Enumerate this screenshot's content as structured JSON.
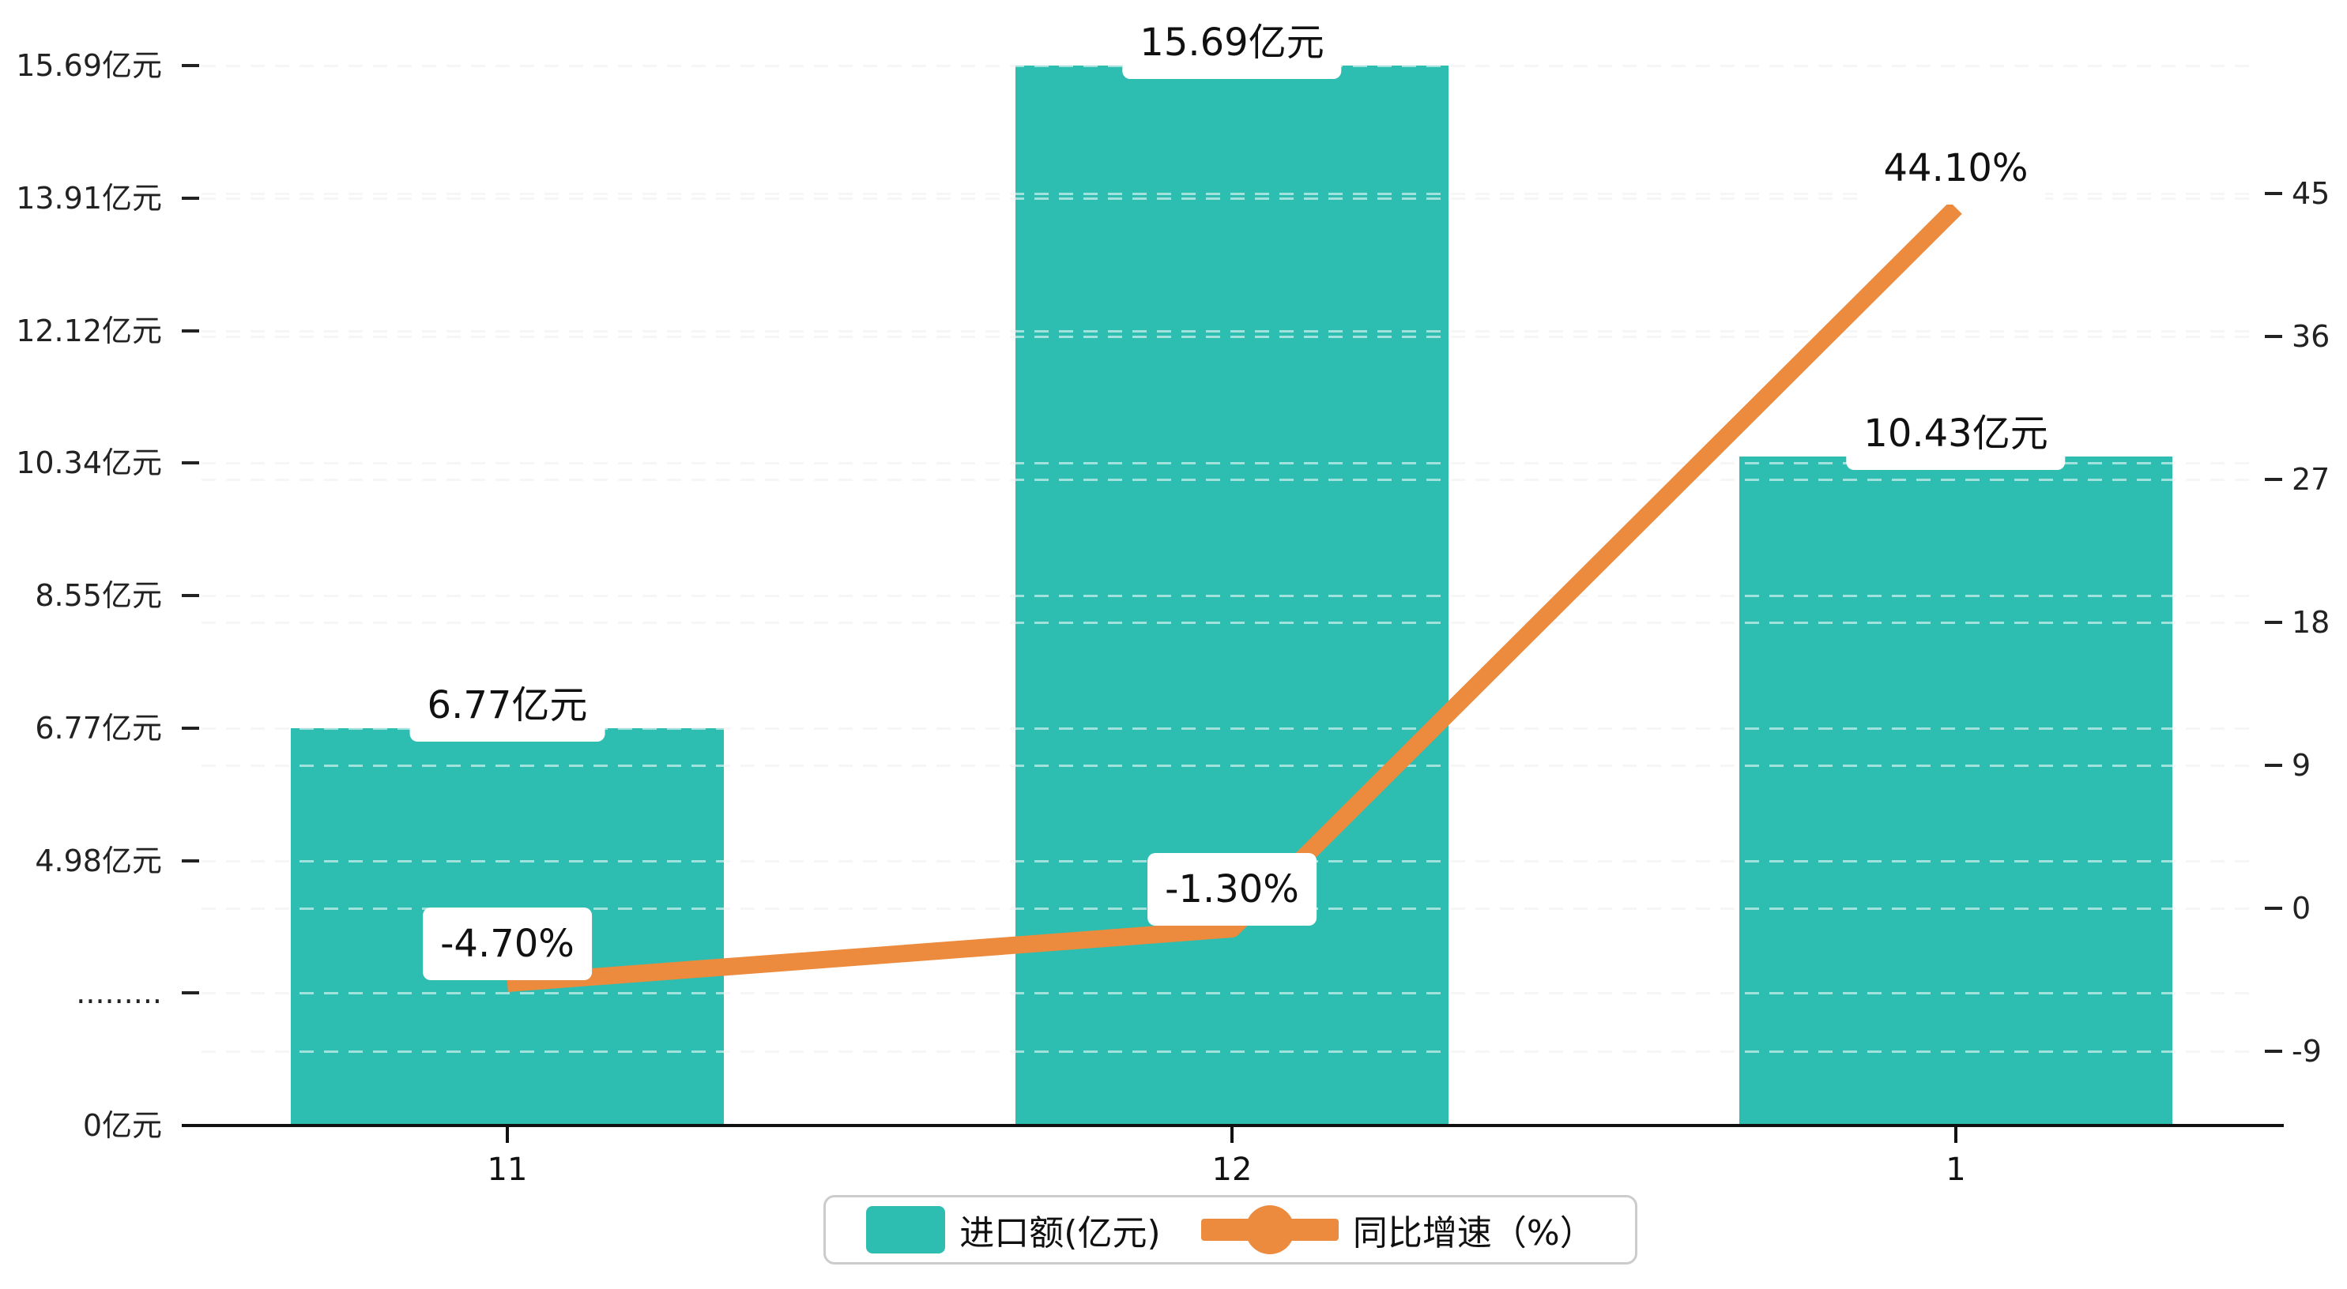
{
  "chart_data": {
    "type": "bar",
    "subtype": "combo-bar-line-dual-axis",
    "categories": [
      "11",
      "12",
      "1"
    ],
    "series": [
      {
        "name": "进口额(亿元)",
        "type": "bar",
        "yaxis": "left",
        "values": [
          6.77,
          15.69,
          10.43
        ],
        "data_labels": [
          "6.77亿元",
          "15.69亿元",
          "10.43亿元"
        ],
        "color": "#2EBEB1"
      },
      {
        "name": "同比增速（%）",
        "type": "line",
        "yaxis": "right",
        "values": [
          -4.7,
          -1.3,
          44.1
        ],
        "data_labels": [
          "-4.70%",
          "-1.30%",
          "44.10%"
        ],
        "color": "#EC8A3D"
      }
    ],
    "left_axis": {
      "unit": "亿元",
      "ticks_bottom_to_top": [
        {
          "label": "0亿元",
          "value": 0
        },
        {
          "label": ".........",
          "value": null
        },
        {
          "label": "4.98亿元",
          "value": 4.98
        },
        {
          "label": "6.77亿元",
          "value": 6.77
        },
        {
          "label": "8.55亿元",
          "value": 8.55
        },
        {
          "label": "10.34亿元",
          "value": 10.34
        },
        {
          "label": "12.12亿元",
          "value": 12.12
        },
        {
          "label": "13.91亿元",
          "value": 13.91
        },
        {
          "label": "15.69亿元",
          "value": 15.69
        }
      ]
    },
    "right_axis": {
      "min": -9,
      "max": 45,
      "interval": 9,
      "ticks_bottom_to_top": [
        "-9",
        "0",
        "9",
        "18",
        "27",
        "36",
        "45"
      ]
    },
    "legend": [
      {
        "label": "进口额(亿元)",
        "type": "bar",
        "color": "#2EBEB1"
      },
      {
        "label": "同比增速（%）",
        "type": "line",
        "color": "#EC8A3D"
      }
    ],
    "grid": "dashed-horizontal",
    "legend_position": "bottom-center"
  },
  "colors": {
    "bar": "#2EBEB1",
    "line": "#EC8A3D",
    "axis": "#111111",
    "grid": "#ECECEC",
    "text": "#222222",
    "label_bg": "#FFFFFF",
    "legend_border": "#CCCCCC"
  }
}
